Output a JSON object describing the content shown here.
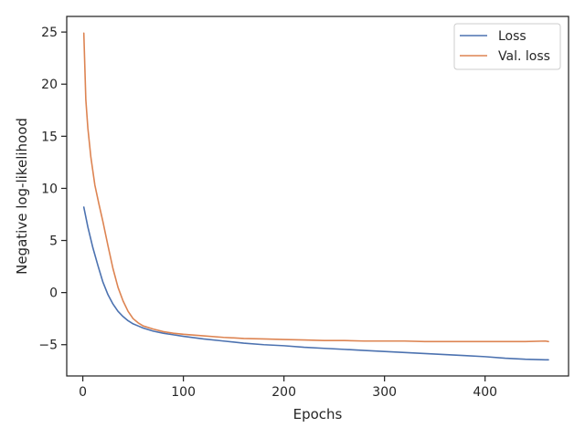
{
  "chart_data": {
    "type": "line",
    "xlabel": "Epochs",
    "ylabel": "Negative log-likelihood",
    "xlim": [
      -16,
      483
    ],
    "ylim": [
      -8,
      26.5
    ],
    "xticks": [
      0,
      100,
      200,
      300,
      400
    ],
    "yticks": [
      -5,
      0,
      5,
      10,
      15,
      20,
      25
    ],
    "xtick_labels": [
      "0",
      "100",
      "200",
      "300",
      "400"
    ],
    "ytick_labels": [
      "−5",
      "0",
      "5",
      "10",
      "15",
      "20",
      "25"
    ],
    "grid": false,
    "legend_position": "top-right",
    "series": [
      {
        "name": "Loss",
        "color": "#4c72b0",
        "x": [
          1,
          5,
          10,
          15,
          20,
          25,
          30,
          35,
          40,
          45,
          50,
          55,
          60,
          70,
          80,
          90,
          100,
          120,
          140,
          160,
          180,
          200,
          220,
          240,
          260,
          280,
          300,
          320,
          340,
          360,
          380,
          400,
          420,
          440,
          460,
          463
        ],
        "y": [
          8.2,
          6.3,
          4.3,
          2.6,
          1.0,
          -0.2,
          -1.1,
          -1.8,
          -2.3,
          -2.7,
          -3.0,
          -3.2,
          -3.4,
          -3.7,
          -3.9,
          -4.05,
          -4.2,
          -4.45,
          -4.65,
          -4.85,
          -5.0,
          -5.1,
          -5.25,
          -5.35,
          -5.45,
          -5.55,
          -5.65,
          -5.75,
          -5.85,
          -5.95,
          -6.05,
          -6.15,
          -6.3,
          -6.4,
          -6.45,
          -6.45
        ]
      },
      {
        "name": "Val. loss",
        "color": "#dd8452",
        "x": [
          1,
          3,
          5,
          8,
          12,
          16,
          20,
          25,
          30,
          35,
          40,
          45,
          50,
          55,
          60,
          70,
          80,
          90,
          100,
          120,
          140,
          160,
          180,
          200,
          220,
          240,
          260,
          280,
          300,
          320,
          340,
          360,
          380,
          400,
          420,
          440,
          460,
          463
        ],
        "y": [
          24.9,
          18.5,
          15.8,
          13.0,
          10.3,
          8.5,
          6.8,
          4.5,
          2.3,
          0.5,
          -0.8,
          -1.8,
          -2.5,
          -2.9,
          -3.2,
          -3.5,
          -3.75,
          -3.9,
          -4.0,
          -4.15,
          -4.3,
          -4.4,
          -4.45,
          -4.5,
          -4.55,
          -4.6,
          -4.6,
          -4.65,
          -4.65,
          -4.65,
          -4.7,
          -4.7,
          -4.7,
          -4.7,
          -4.7,
          -4.7,
          -4.65,
          -4.7
        ]
      }
    ]
  }
}
